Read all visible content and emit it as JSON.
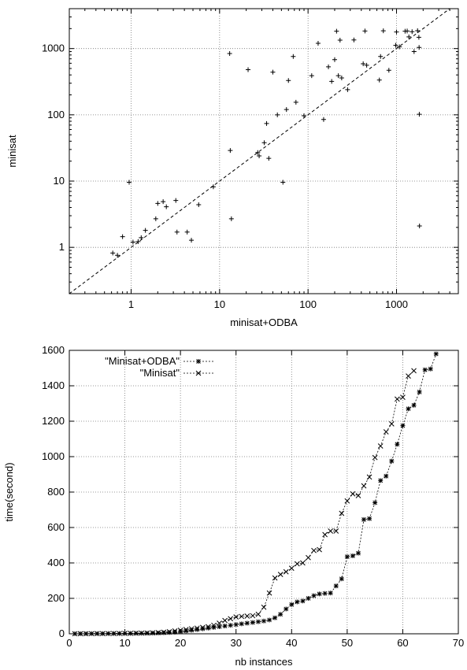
{
  "chart_data": [
    {
      "type": "scatter",
      "xlabel": "minisat+ODBA",
      "ylabel": "minisat",
      "xscale": "log",
      "yscale": "log",
      "xlim": [
        0.2,
        5000
      ],
      "ylim": [
        0.2,
        4000
      ],
      "xticks": [
        1,
        10,
        100,
        1000
      ],
      "yticks": [
        1,
        10,
        100,
        1000
      ],
      "x_tick_labels": [
        "1",
        "10",
        "100",
        "1000"
      ],
      "y_tick_labels": [
        "1",
        "10",
        "100",
        "1000"
      ],
      "grid": true,
      "reference_line": "y = x",
      "points": [
        [
          0.62,
          0.82
        ],
        [
          0.7,
          0.76
        ],
        [
          0.8,
          1.45
        ],
        [
          0.95,
          9.6
        ],
        [
          1.05,
          1.2
        ],
        [
          1.2,
          1.22
        ],
        [
          1.3,
          1.4
        ],
        [
          1.45,
          1.8
        ],
        [
          1.9,
          2.7
        ],
        [
          2.0,
          4.6
        ],
        [
          2.3,
          4.9
        ],
        [
          2.5,
          4.1
        ],
        [
          3.2,
          5.1
        ],
        [
          3.3,
          1.7
        ],
        [
          4.3,
          1.7
        ],
        [
          4.8,
          1.28
        ],
        [
          5.8,
          4.4
        ],
        [
          8.5,
          8.2
        ],
        [
          13,
          840
        ],
        [
          13.2,
          29
        ],
        [
          13.6,
          2.7
        ],
        [
          21,
          480
        ],
        [
          27,
          27
        ],
        [
          28,
          24
        ],
        [
          32,
          38
        ],
        [
          34,
          74
        ],
        [
          36,
          22
        ],
        [
          40,
          440
        ],
        [
          45,
          100
        ],
        [
          52,
          9.6
        ],
        [
          57,
          120
        ],
        [
          60,
          330
        ],
        [
          68,
          760
        ],
        [
          73,
          155
        ],
        [
          90,
          97
        ],
        [
          110,
          390
        ],
        [
          130,
          1200
        ],
        [
          150,
          85
        ],
        [
          170,
          530
        ],
        [
          185,
          320
        ],
        [
          200,
          680
        ],
        [
          210,
          1830
        ],
        [
          230,
          1340
        ],
        [
          220,
          390
        ],
        [
          240,
          360
        ],
        [
          280,
          240
        ],
        [
          330,
          1350
        ],
        [
          420,
          590
        ],
        [
          440,
          1840
        ],
        [
          460,
          560
        ],
        [
          640,
          335
        ],
        [
          660,
          760
        ],
        [
          710,
          1850
        ],
        [
          820,
          470
        ],
        [
          980,
          1120
        ],
        [
          1000,
          1780
        ],
        [
          1080,
          1060
        ],
        [
          1250,
          1830
        ],
        [
          1320,
          1840
        ],
        [
          1380,
          1500
        ],
        [
          1500,
          1800
        ],
        [
          1580,
          900
        ],
        [
          1730,
          1860
        ],
        [
          1790,
          1480
        ],
        [
          1800,
          1040
        ],
        [
          1810,
          102
        ],
        [
          1820,
          2.1
        ]
      ]
    },
    {
      "type": "line",
      "xlabel": "nb instances",
      "ylabel": "time(second)",
      "xlim": [
        0,
        70
      ],
      "ylim": [
        0,
        1600
      ],
      "xticks": [
        0,
        10,
        20,
        30,
        40,
        50,
        60,
        70
      ],
      "yticks": [
        0,
        200,
        400,
        600,
        800,
        1000,
        1200,
        1400,
        1600
      ],
      "x_tick_labels": [
        "0",
        "10",
        "20",
        "30",
        "40",
        "50",
        "60",
        "70"
      ],
      "y_tick_labels": [
        "0",
        "200",
        "400",
        "600",
        "800",
        "1000",
        "1200",
        "1400",
        "1600"
      ],
      "grid": true,
      "legend_position": "top-left",
      "series": [
        {
          "name": "\"Minisat+ODBA\"",
          "marker": "asterisk",
          "x": [
            1,
            2,
            3,
            4,
            5,
            6,
            7,
            8,
            9,
            10,
            11,
            12,
            13,
            14,
            15,
            16,
            17,
            18,
            19,
            20,
            21,
            22,
            23,
            24,
            25,
            26,
            27,
            28,
            29,
            30,
            31,
            32,
            33,
            34,
            35,
            36,
            37,
            38,
            39,
            40,
            41,
            42,
            43,
            44,
            45,
            46,
            47,
            48,
            49,
            50,
            51,
            52,
            53,
            54,
            55,
            56,
            57,
            58,
            59,
            60,
            61,
            62,
            63,
            64,
            65,
            66
          ],
          "values": [
            0.3,
            0.5,
            0.7,
            0.9,
            1,
            1.2,
            1.4,
            1.6,
            1.8,
            2,
            2.3,
            2.6,
            3,
            3.4,
            3.8,
            4.5,
            5.5,
            7,
            9,
            12,
            16,
            20,
            24,
            28,
            32,
            36,
            40,
            44,
            48,
            52,
            56,
            60,
            64,
            68,
            72,
            78,
            90,
            110,
            140,
            165,
            180,
            185,
            200,
            215,
            225,
            228,
            230,
            270,
            310,
            435,
            440,
            455,
            645,
            650,
            740,
            865,
            890,
            975,
            1070,
            1175,
            1270,
            1290,
            1365,
            1490,
            1495,
            1580
          ]
        },
        {
          "name": "\"Minisat\"",
          "marker": "cross",
          "x": [
            1,
            2,
            3,
            4,
            5,
            6,
            7,
            8,
            9,
            10,
            11,
            12,
            13,
            14,
            15,
            16,
            17,
            18,
            19,
            20,
            21,
            22,
            23,
            24,
            25,
            26,
            27,
            28,
            29,
            30,
            31,
            32,
            33,
            34,
            35,
            36,
            37,
            38,
            39,
            40,
            41,
            42,
            43,
            44,
            45,
            46,
            47,
            48,
            49,
            50,
            51,
            52,
            53,
            54,
            55,
            56,
            57,
            58,
            59,
            60,
            61,
            62
          ],
          "values": [
            0.3,
            0.5,
            0.7,
            0.9,
            1,
            1.2,
            1.4,
            1.7,
            2,
            2.4,
            2.8,
            3.3,
            3.9,
            4.6,
            5.5,
            7,
            9,
            12,
            16,
            20,
            24,
            28,
            32,
            36,
            40,
            48,
            60,
            75,
            85,
            95,
            98,
            100,
            102,
            110,
            150,
            230,
            315,
            335,
            350,
            370,
            395,
            400,
            430,
            470,
            475,
            560,
            580,
            580,
            680,
            750,
            790,
            780,
            835,
            885,
            995,
            1060,
            1140,
            1185,
            1325,
            1335,
            1455,
            1485
          ]
        }
      ]
    }
  ]
}
